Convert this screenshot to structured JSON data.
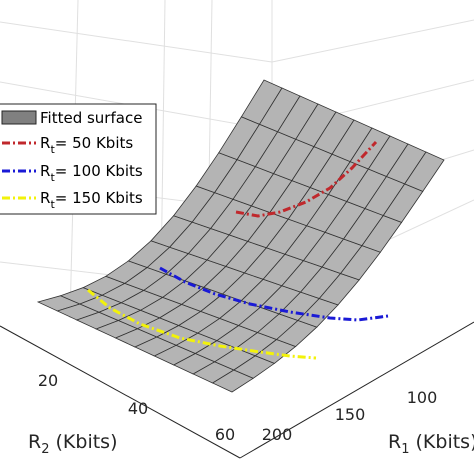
{
  "chart_data": {
    "type": "surface3d",
    "title": "",
    "x_axis": {
      "label": "R",
      "label_sub": "1",
      "label_tail": " (Kbits)",
      "ticks": [
        "100",
        "150",
        "200"
      ]
    },
    "y_axis": {
      "label": "R",
      "label_sub": "2",
      "label_tail": " (Kbits)",
      "ticks": [
        "20",
        "40",
        "60"
      ]
    },
    "grid": true,
    "surface": {
      "name": "Fitted surface",
      "x_range": [
        50,
        200
      ],
      "y_range": [
        0,
        60
      ],
      "color": "#b4b4b4",
      "edge_color": "#333333"
    },
    "legend": {
      "position": "top-left",
      "entries": [
        {
          "name": "Fitted surface",
          "kind": "patch",
          "color": "#808080"
        },
        {
          "name_pre": "R",
          "name_sub": "t",
          "name_post": "= 50 Kbits",
          "kind": "line",
          "color": "#c0282c",
          "dash": "dash-dot"
        },
        {
          "name_pre": "R",
          "name_sub": "t",
          "name_post": "= 100 Kbits",
          "kind": "line",
          "color": "#1a1ad6",
          "dash": "dash-dot"
        },
        {
          "name_pre": "R",
          "name_sub": "t",
          "name_post": "= 150 Kbits",
          "kind": "line",
          "color": "#f2f20a",
          "dash": "dash-dot"
        }
      ]
    },
    "series": [
      {
        "name": "Rt = 50 Kbits",
        "color": "#c0282c"
      },
      {
        "name": "Rt = 100 Kbits",
        "color": "#1a1ad6"
      },
      {
        "name": "Rt = 150 Kbits",
        "color": "#f2f20a"
      }
    ]
  }
}
